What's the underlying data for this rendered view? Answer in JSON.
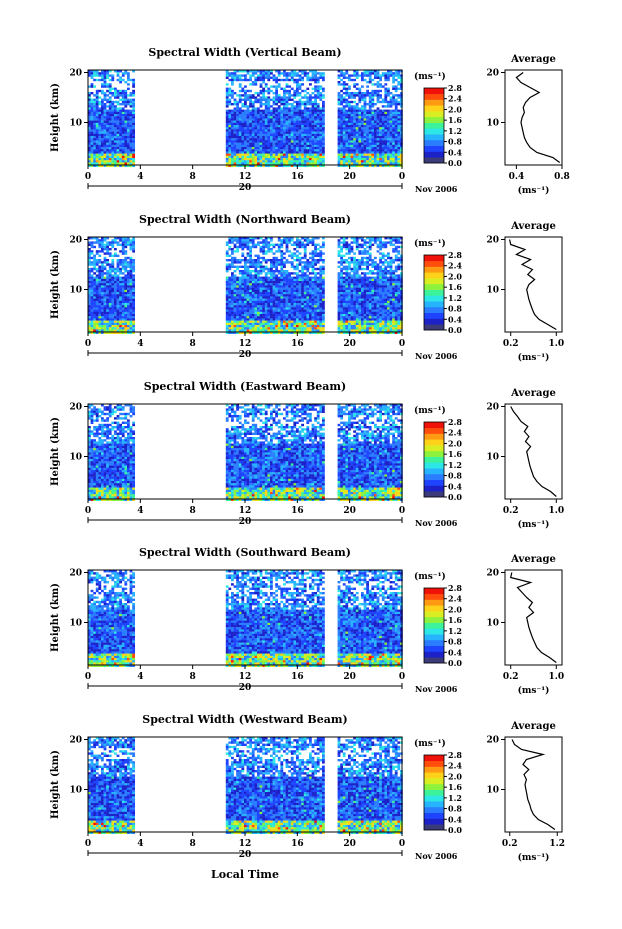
{
  "figure": {
    "xlabel_common": "Local Time",
    "date_label": "Nov 2006",
    "day_label": "20",
    "colorbar_unit": "(ms⁻¹)",
    "colorbar_ticks": [
      "0.0",
      "0.4",
      "0.8",
      "1.2",
      "1.6",
      "2.0",
      "2.4",
      "2.8"
    ],
    "avg_title": "Average",
    "avg_xlabel": "(ms⁻¹)",
    "ylabel": "Height (km)"
  },
  "colors": {
    "colormap": [
      "#3b3b7a",
      "#1c22c8",
      "#1f44ff",
      "#2a7dff",
      "#27b4ff",
      "#2de6e6",
      "#3cf29a",
      "#8cf23c",
      "#d8ee22",
      "#ffd21a",
      "#ff9a12",
      "#ff4d0c",
      "#f01208"
    ]
  },
  "chart_data": [
    {
      "type": "heatmap",
      "title": "Spectral Width (Vertical Beam)",
      "xlabel": "Local Time",
      "ylabel": "Height (km)",
      "x_ticks": [
        "0",
        "4",
        "8",
        "12",
        "16",
        "20",
        "0"
      ],
      "y_ticks": [
        "20",
        "10"
      ],
      "xlim": [
        0,
        24
      ],
      "ylim": [
        1.5,
        20.5
      ],
      "data_gaps": [
        [
          3.5,
          10.6
        ],
        [
          18.1,
          19.1
        ]
      ],
      "colorbar": {
        "label": "(ms⁻¹)",
        "range": [
          0.0,
          2.8
        ],
        "ticks": [
          "0.0",
          "0.4",
          "0.8",
          "1.2",
          "1.6",
          "2.0",
          "2.4",
          "2.8"
        ]
      },
      "average_profile": {
        "title": "Average",
        "xlabel": "(ms⁻¹)",
        "x_ticks": [
          "0.4",
          "0.8"
        ],
        "xlim": [
          0.3,
          0.8
        ],
        "height": [
          2,
          3,
          4,
          5,
          6,
          7,
          8,
          9,
          10,
          11,
          12,
          13,
          14,
          15,
          16,
          17,
          18,
          19,
          20
        ],
        "value": [
          0.78,
          0.72,
          0.58,
          0.52,
          0.49,
          0.47,
          0.46,
          0.45,
          0.44,
          0.45,
          0.47,
          0.46,
          0.48,
          0.52,
          0.6,
          0.52,
          0.44,
          0.4,
          0.46
        ]
      }
    },
    {
      "type": "heatmap",
      "title": "Spectral Width (Northward Beam)",
      "xlabel": "Local Time",
      "ylabel": "Height (km)",
      "x_ticks": [
        "0",
        "4",
        "8",
        "12",
        "16",
        "20",
        "0"
      ],
      "y_ticks": [
        "20",
        "10"
      ],
      "xlim": [
        0,
        24
      ],
      "ylim": [
        1.5,
        20.5
      ],
      "data_gaps": [
        [
          3.5,
          10.6
        ],
        [
          18.1,
          19.1
        ]
      ],
      "colorbar": {
        "label": "(ms⁻¹)",
        "range": [
          0.0,
          2.8
        ],
        "ticks": [
          "0.0",
          "0.4",
          "0.8",
          "1.2",
          "1.6",
          "2.0",
          "2.4",
          "2.8"
        ]
      },
      "average_profile": {
        "title": "Average",
        "xlabel": "(ms⁻¹)",
        "x_ticks": [
          "0.2",
          "1.0"
        ],
        "xlim": [
          0.1,
          1.1
        ],
        "height": [
          2,
          3,
          4,
          5,
          6,
          7,
          8,
          9,
          10,
          11,
          12,
          13,
          14,
          15,
          16,
          17,
          18,
          19,
          20
        ],
        "value": [
          1.0,
          0.85,
          0.7,
          0.62,
          0.58,
          0.55,
          0.52,
          0.5,
          0.48,
          0.52,
          0.62,
          0.5,
          0.58,
          0.4,
          0.55,
          0.3,
          0.45,
          0.2,
          0.18
        ]
      }
    },
    {
      "type": "heatmap",
      "title": "Spectral Width (Eastward Beam)",
      "xlabel": "Local Time",
      "ylabel": "Height (km)",
      "x_ticks": [
        "0",
        "4",
        "8",
        "12",
        "16",
        "20",
        "0"
      ],
      "y_ticks": [
        "20",
        "10"
      ],
      "xlim": [
        0,
        24
      ],
      "ylim": [
        1.5,
        20.5
      ],
      "data_gaps": [
        [
          3.5,
          10.6
        ],
        [
          18.1,
          19.1
        ]
      ],
      "colorbar": {
        "label": "(ms⁻¹)",
        "range": [
          0.0,
          2.8
        ],
        "ticks": [
          "0.0",
          "0.4",
          "0.8",
          "1.2",
          "1.6",
          "2.0",
          "2.4",
          "2.8"
        ]
      },
      "average_profile": {
        "title": "Average",
        "xlabel": "(ms⁻¹)",
        "x_ticks": [
          "0.2",
          "1.0"
        ],
        "xlim": [
          0.1,
          1.1
        ],
        "height": [
          2,
          3,
          4,
          5,
          6,
          7,
          8,
          9,
          10,
          11,
          12,
          13,
          14,
          15,
          16,
          17,
          18,
          19,
          20
        ],
        "value": [
          1.0,
          0.9,
          0.75,
          0.66,
          0.6,
          0.57,
          0.54,
          0.52,
          0.5,
          0.48,
          0.55,
          0.46,
          0.52,
          0.44,
          0.5,
          0.38,
          0.32,
          0.25,
          0.2
        ]
      }
    },
    {
      "type": "heatmap",
      "title": "Spectral Width (Southward Beam)",
      "xlabel": "Local Time",
      "ylabel": "Height (km)",
      "x_ticks": [
        "0",
        "4",
        "8",
        "12",
        "16",
        "20",
        "0"
      ],
      "y_ticks": [
        "20",
        "10"
      ],
      "xlim": [
        0,
        24
      ],
      "ylim": [
        1.5,
        20.5
      ],
      "data_gaps": [
        [
          3.5,
          10.6
        ],
        [
          18.1,
          19.1
        ]
      ],
      "colorbar": {
        "label": "(ms⁻¹)",
        "range": [
          0.0,
          2.8
        ],
        "ticks": [
          "0.0",
          "0.4",
          "0.8",
          "1.2",
          "1.6",
          "2.0",
          "2.4",
          "2.8"
        ]
      },
      "average_profile": {
        "title": "Average",
        "xlabel": "(ms⁻¹)",
        "x_ticks": [
          "0.2",
          "1.0"
        ],
        "xlim": [
          0.1,
          1.1
        ],
        "height": [
          2,
          3,
          4,
          5,
          6,
          7,
          8,
          9,
          10,
          11,
          12,
          13,
          14,
          15,
          16,
          17,
          18,
          19,
          20
        ],
        "value": [
          1.0,
          0.88,
          0.74,
          0.66,
          0.62,
          0.58,
          0.55,
          0.52,
          0.5,
          0.48,
          0.6,
          0.52,
          0.58,
          0.48,
          0.4,
          0.32,
          0.55,
          0.2,
          0.22
        ]
      }
    },
    {
      "type": "heatmap",
      "title": "Spectral Width (Westward Beam)",
      "xlabel": "Local Time",
      "ylabel": "Height (km)",
      "x_ticks": [
        "0",
        "4",
        "8",
        "12",
        "16",
        "20",
        "0"
      ],
      "y_ticks": [
        "20",
        "10"
      ],
      "xlim": [
        0,
        24
      ],
      "ylim": [
        1.5,
        20.5
      ],
      "data_gaps": [
        [
          3.5,
          10.6
        ],
        [
          18.1,
          19.1
        ]
      ],
      "colorbar": {
        "label": "(ms⁻¹)",
        "range": [
          0.0,
          2.8
        ],
        "ticks": [
          "0.0",
          "0.4",
          "0.8",
          "1.2",
          "1.6",
          "2.0",
          "2.4",
          "2.8"
        ]
      },
      "average_profile": {
        "title": "Average",
        "xlabel": "(ms⁻¹)",
        "x_ticks": [
          "0.2",
          "1.2"
        ],
        "xlim": [
          0.1,
          1.3
        ],
        "height": [
          2,
          3,
          4,
          5,
          6,
          7,
          8,
          9,
          10,
          11,
          12,
          13,
          14,
          15,
          16,
          17,
          18,
          19,
          20
        ],
        "value": [
          1.15,
          1.0,
          0.8,
          0.7,
          0.65,
          0.62,
          0.58,
          0.56,
          0.54,
          0.52,
          0.55,
          0.5,
          0.6,
          0.48,
          0.55,
          0.9,
          0.45,
          0.3,
          0.25
        ]
      }
    }
  ]
}
